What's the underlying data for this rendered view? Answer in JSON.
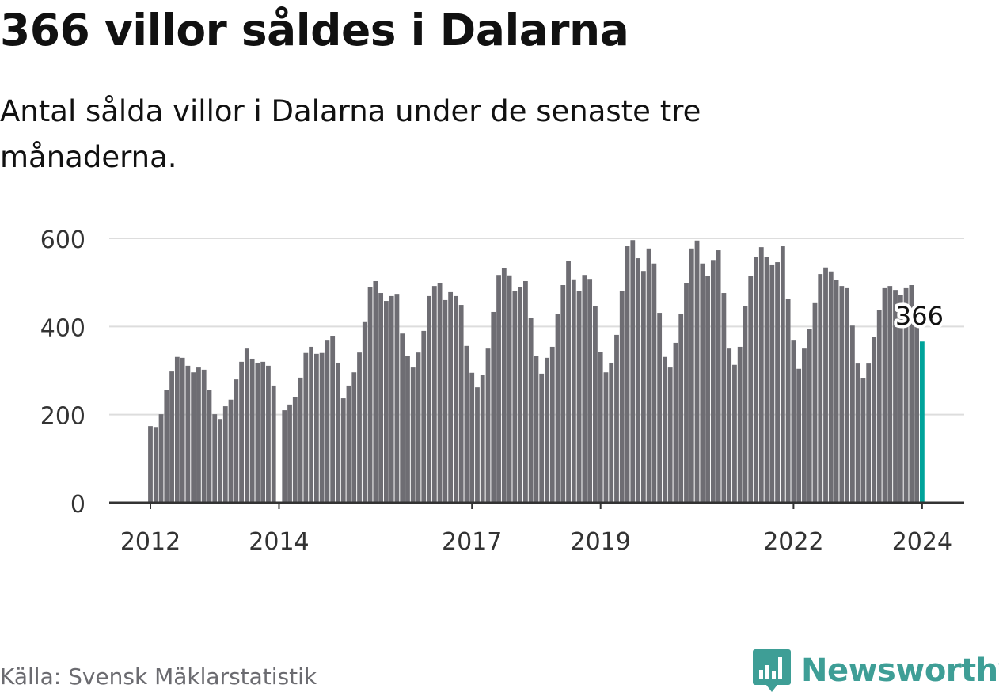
{
  "title": "366 villor såldes i Dalarna",
  "subtitle": "Antal sålda villor i Dalarna under de senaste tre månaderna.",
  "source": "Källa: Svensk Mäklarstatistik",
  "brand": "Newsworthy",
  "colors": {
    "bar": "#6e6d73",
    "highlight": "#00a39a",
    "grid": "#dddddd",
    "axis": "#333333",
    "brand": "#3e9e96"
  },
  "chart_data": {
    "type": "bar",
    "title": "366 villor såldes i Dalarna",
    "xlabel": "",
    "ylabel": "",
    "x_start": "2012-01",
    "x_interval": "month",
    "ylim": [
      0,
      600
    ],
    "grid": true,
    "yticks": [
      0,
      200,
      400,
      600
    ],
    "xticks": [
      {
        "label": "2012",
        "index": 0
      },
      {
        "label": "2014",
        "index": 24
      },
      {
        "label": "2017",
        "index": 60
      },
      {
        "label": "2019",
        "index": 84
      },
      {
        "label": "2022",
        "index": 120
      },
      {
        "label": "2024",
        "index": 144
      }
    ],
    "values": [
      174,
      172,
      201,
      256,
      298,
      331,
      329,
      311,
      296,
      307,
      302,
      256,
      201,
      190,
      219,
      234,
      280,
      320,
      350,
      327,
      318,
      320,
      311,
      266,
      null,
      210,
      223,
      239,
      284,
      340,
      354,
      338,
      340,
      368,
      379,
      318,
      237,
      266,
      296,
      341,
      410,
      489,
      503,
      476,
      458,
      469,
      474,
      384,
      334,
      307,
      341,
      390,
      469,
      492,
      498,
      460,
      478,
      469,
      449,
      356,
      295,
      262,
      291,
      350,
      433,
      517,
      532,
      516,
      480,
      489,
      503,
      420,
      334,
      293,
      329,
      354,
      428,
      494,
      548,
      507,
      481,
      517,
      508,
      446,
      343,
      296,
      318,
      381,
      481,
      582,
      596,
      555,
      526,
      577,
      543,
      431,
      331,
      307,
      363,
      429,
      498,
      577,
      595,
      543,
      514,
      551,
      573,
      476,
      350,
      313,
      354,
      447,
      514,
      557,
      580,
      557,
      539,
      546,
      582,
      462,
      368,
      304,
      350,
      395,
      453,
      519,
      534,
      525,
      505,
      492,
      487,
      402,
      316,
      282,
      316,
      377,
      437,
      487,
      492,
      483,
      472,
      487,
      494,
      400,
      366
    ],
    "highlight_label": "366"
  }
}
